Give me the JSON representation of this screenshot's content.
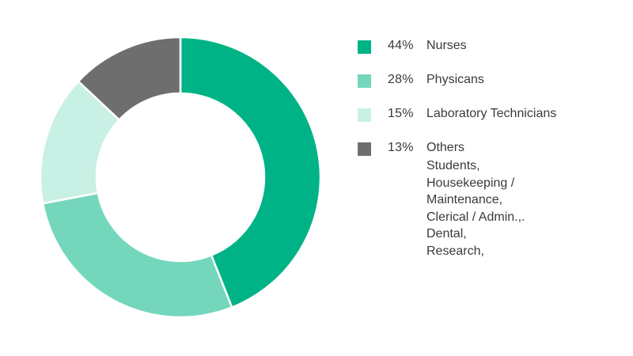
{
  "chart_data": {
    "type": "pie",
    "variant": "donut",
    "categories": [
      "Nurses",
      "Physicans",
      "Laboratory Technicians",
      "Others"
    ],
    "values": [
      44,
      28,
      15,
      13
    ],
    "value_labels": [
      "44%",
      "28%",
      "15%",
      "13%"
    ],
    "colors": [
      "#00b386",
      "#74d7bc",
      "#c9f0e4",
      "#6e6e6e"
    ],
    "others_breakdown": [
      "Students,",
      "Housekeeping /",
      "Maintenance,",
      "Clerical / Admin.,.",
      "Dental,",
      "Research,"
    ],
    "legend_position": "right",
    "start_angle_deg": 0,
    "direction": "clockwise"
  }
}
